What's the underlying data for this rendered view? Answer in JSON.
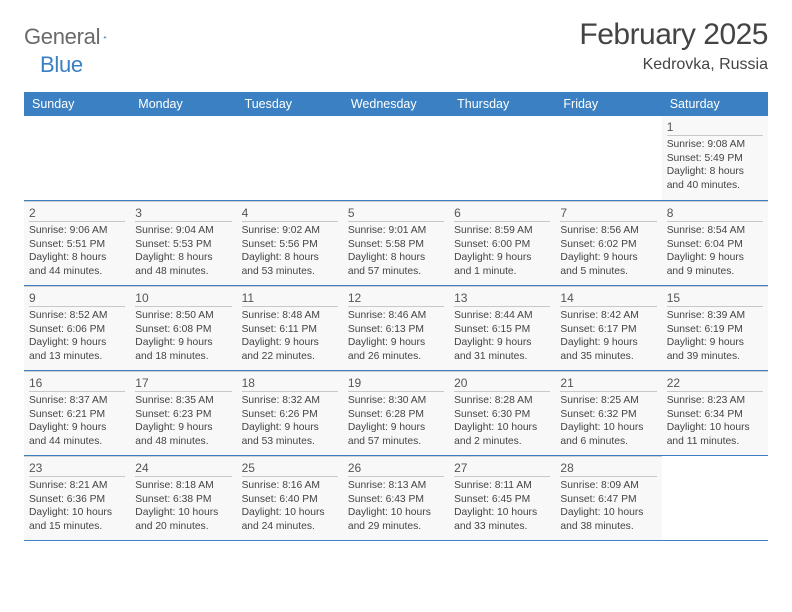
{
  "logo": {
    "word1": "General",
    "word2": "Blue"
  },
  "title": "February 2025",
  "location": "Kedrovka, Russia",
  "colors": {
    "brand_blue": "#3a80c2",
    "text_gray": "#444444",
    "logo_gray": "#6a6a6a",
    "cell_bg": "#f8f8f8",
    "cell_border": "#d0d0d0",
    "page_bg": "#ffffff"
  },
  "typography": {
    "title_fontsize": 30,
    "location_fontsize": 16,
    "weekday_fontsize": 12.5,
    "daynum_fontsize": 12,
    "detail_fontsize": 10.3
  },
  "weekdays": [
    "Sunday",
    "Monday",
    "Tuesday",
    "Wednesday",
    "Thursday",
    "Friday",
    "Saturday"
  ],
  "weeks": [
    [
      null,
      null,
      null,
      null,
      null,
      null,
      {
        "n": "1",
        "sunrise": "Sunrise: 9:08 AM",
        "sunset": "Sunset: 5:49 PM",
        "day1": "Daylight: 8 hours",
        "day2": "and 40 minutes."
      }
    ],
    [
      {
        "n": "2",
        "sunrise": "Sunrise: 9:06 AM",
        "sunset": "Sunset: 5:51 PM",
        "day1": "Daylight: 8 hours",
        "day2": "and 44 minutes."
      },
      {
        "n": "3",
        "sunrise": "Sunrise: 9:04 AM",
        "sunset": "Sunset: 5:53 PM",
        "day1": "Daylight: 8 hours",
        "day2": "and 48 minutes."
      },
      {
        "n": "4",
        "sunrise": "Sunrise: 9:02 AM",
        "sunset": "Sunset: 5:56 PM",
        "day1": "Daylight: 8 hours",
        "day2": "and 53 minutes."
      },
      {
        "n": "5",
        "sunrise": "Sunrise: 9:01 AM",
        "sunset": "Sunset: 5:58 PM",
        "day1": "Daylight: 8 hours",
        "day2": "and 57 minutes."
      },
      {
        "n": "6",
        "sunrise": "Sunrise: 8:59 AM",
        "sunset": "Sunset: 6:00 PM",
        "day1": "Daylight: 9 hours",
        "day2": "and 1 minute."
      },
      {
        "n": "7",
        "sunrise": "Sunrise: 8:56 AM",
        "sunset": "Sunset: 6:02 PM",
        "day1": "Daylight: 9 hours",
        "day2": "and 5 minutes."
      },
      {
        "n": "8",
        "sunrise": "Sunrise: 8:54 AM",
        "sunset": "Sunset: 6:04 PM",
        "day1": "Daylight: 9 hours",
        "day2": "and 9 minutes."
      }
    ],
    [
      {
        "n": "9",
        "sunrise": "Sunrise: 8:52 AM",
        "sunset": "Sunset: 6:06 PM",
        "day1": "Daylight: 9 hours",
        "day2": "and 13 minutes."
      },
      {
        "n": "10",
        "sunrise": "Sunrise: 8:50 AM",
        "sunset": "Sunset: 6:08 PM",
        "day1": "Daylight: 9 hours",
        "day2": "and 18 minutes."
      },
      {
        "n": "11",
        "sunrise": "Sunrise: 8:48 AM",
        "sunset": "Sunset: 6:11 PM",
        "day1": "Daylight: 9 hours",
        "day2": "and 22 minutes."
      },
      {
        "n": "12",
        "sunrise": "Sunrise: 8:46 AM",
        "sunset": "Sunset: 6:13 PM",
        "day1": "Daylight: 9 hours",
        "day2": "and 26 minutes."
      },
      {
        "n": "13",
        "sunrise": "Sunrise: 8:44 AM",
        "sunset": "Sunset: 6:15 PM",
        "day1": "Daylight: 9 hours",
        "day2": "and 31 minutes."
      },
      {
        "n": "14",
        "sunrise": "Sunrise: 8:42 AM",
        "sunset": "Sunset: 6:17 PM",
        "day1": "Daylight: 9 hours",
        "day2": "and 35 minutes."
      },
      {
        "n": "15",
        "sunrise": "Sunrise: 8:39 AM",
        "sunset": "Sunset: 6:19 PM",
        "day1": "Daylight: 9 hours",
        "day2": "and 39 minutes."
      }
    ],
    [
      {
        "n": "16",
        "sunrise": "Sunrise: 8:37 AM",
        "sunset": "Sunset: 6:21 PM",
        "day1": "Daylight: 9 hours",
        "day2": "and 44 minutes."
      },
      {
        "n": "17",
        "sunrise": "Sunrise: 8:35 AM",
        "sunset": "Sunset: 6:23 PM",
        "day1": "Daylight: 9 hours",
        "day2": "and 48 minutes."
      },
      {
        "n": "18",
        "sunrise": "Sunrise: 8:32 AM",
        "sunset": "Sunset: 6:26 PM",
        "day1": "Daylight: 9 hours",
        "day2": "and 53 minutes."
      },
      {
        "n": "19",
        "sunrise": "Sunrise: 8:30 AM",
        "sunset": "Sunset: 6:28 PM",
        "day1": "Daylight: 9 hours",
        "day2": "and 57 minutes."
      },
      {
        "n": "20",
        "sunrise": "Sunrise: 8:28 AM",
        "sunset": "Sunset: 6:30 PM",
        "day1": "Daylight: 10 hours",
        "day2": "and 2 minutes."
      },
      {
        "n": "21",
        "sunrise": "Sunrise: 8:25 AM",
        "sunset": "Sunset: 6:32 PM",
        "day1": "Daylight: 10 hours",
        "day2": "and 6 minutes."
      },
      {
        "n": "22",
        "sunrise": "Sunrise: 8:23 AM",
        "sunset": "Sunset: 6:34 PM",
        "day1": "Daylight: 10 hours",
        "day2": "and 11 minutes."
      }
    ],
    [
      {
        "n": "23",
        "sunrise": "Sunrise: 8:21 AM",
        "sunset": "Sunset: 6:36 PM",
        "day1": "Daylight: 10 hours",
        "day2": "and 15 minutes."
      },
      {
        "n": "24",
        "sunrise": "Sunrise: 8:18 AM",
        "sunset": "Sunset: 6:38 PM",
        "day1": "Daylight: 10 hours",
        "day2": "and 20 minutes."
      },
      {
        "n": "25",
        "sunrise": "Sunrise: 8:16 AM",
        "sunset": "Sunset: 6:40 PM",
        "day1": "Daylight: 10 hours",
        "day2": "and 24 minutes."
      },
      {
        "n": "26",
        "sunrise": "Sunrise: 8:13 AM",
        "sunset": "Sunset: 6:43 PM",
        "day1": "Daylight: 10 hours",
        "day2": "and 29 minutes."
      },
      {
        "n": "27",
        "sunrise": "Sunrise: 8:11 AM",
        "sunset": "Sunset: 6:45 PM",
        "day1": "Daylight: 10 hours",
        "day2": "and 33 minutes."
      },
      {
        "n": "28",
        "sunrise": "Sunrise: 8:09 AM",
        "sunset": "Sunset: 6:47 PM",
        "day1": "Daylight: 10 hours",
        "day2": "and 38 minutes."
      },
      null
    ]
  ]
}
